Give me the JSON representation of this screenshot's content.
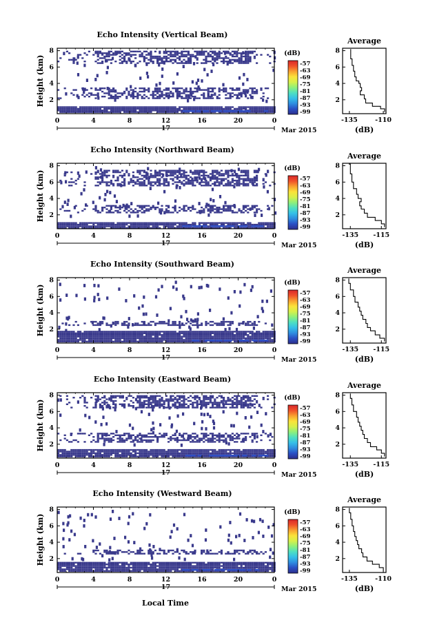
{
  "figure": {
    "xlabel": "Local Time",
    "date_label": "Mar 2015",
    "day_label": "17"
  },
  "chart_data": [
    {
      "type": "heatmap",
      "title": "Echo Intensity (Vertical Beam)",
      "ylabel": "Height (km)",
      "x_ticks": [
        "0",
        "4",
        "8",
        "12",
        "16",
        "20",
        "0"
      ],
      "y_ticks": [
        "2",
        "4",
        "6",
        "8"
      ],
      "xlim": [
        0,
        24
      ],
      "ylim": [
        0.3,
        8.3
      ],
      "colorbar": {
        "label": "(dB)",
        "ticks": [
          "-57",
          "-63",
          "-69",
          "-75",
          "-81",
          "-87",
          "-93",
          "-99"
        ]
      },
      "echo_layers_km": [
        [
          0.5,
          1.2
        ],
        [
          2.2,
          3.5
        ],
        [
          6.5,
          8.0
        ]
      ],
      "average": {
        "title": "Average",
        "xlabel": "(dB)",
        "x_ticks": [
          "-135",
          "-110"
        ],
        "y_ticks": [
          "2",
          "4",
          "6",
          "8"
        ],
        "xlim": [
          -140,
          -108
        ],
        "ylim": [
          0.3,
          8.3
        ],
        "profile": [
          [
            0.5,
            -109
          ],
          [
            0.9,
            -112
          ],
          [
            1.2,
            -118
          ],
          [
            1.6,
            -123
          ],
          [
            2.1,
            -124
          ],
          [
            2.6,
            -127
          ],
          [
            3.1,
            -126
          ],
          [
            3.5,
            -127
          ],
          [
            4.0,
            -128
          ],
          [
            4.3,
            -130
          ],
          [
            4.8,
            -131
          ],
          [
            5.5,
            -132
          ],
          [
            6.2,
            -133
          ],
          [
            7.0,
            -134
          ],
          [
            7.8,
            -134
          ],
          [
            8.2,
            -134
          ]
        ]
      }
    },
    {
      "type": "heatmap",
      "title": "Echo Intensity (Northward Beam)",
      "ylabel": "Height (km)",
      "x_ticks": [
        "0",
        "4",
        "8",
        "12",
        "16",
        "20",
        "0"
      ],
      "y_ticks": [
        "2",
        "4",
        "6",
        "8"
      ],
      "xlim": [
        0,
        24
      ],
      "ylim": [
        0.3,
        8.3
      ],
      "colorbar": {
        "label": "(dB)",
        "ticks": [
          "-57",
          "-63",
          "-69",
          "-75",
          "-81",
          "-87",
          "-93",
          "-99"
        ]
      },
      "echo_layers_km": [
        [
          0.4,
          1.1
        ],
        [
          2.2,
          3.2
        ],
        [
          5.5,
          7.5
        ]
      ],
      "average": {
        "title": "Average",
        "xlabel": "(dB)",
        "x_ticks": [
          "-135",
          "-115"
        ],
        "y_ticks": [
          "2",
          "4",
          "6",
          "8"
        ],
        "xlim": [
          -140,
          -112
        ],
        "ylim": [
          0.3,
          8.3
        ],
        "profile": [
          [
            0.5,
            -113
          ],
          [
            0.9,
            -115
          ],
          [
            1.3,
            -119
          ],
          [
            1.7,
            -124
          ],
          [
            2.2,
            -126
          ],
          [
            2.7,
            -128
          ],
          [
            3.1,
            -129
          ],
          [
            3.6,
            -128
          ],
          [
            4.0,
            -130
          ],
          [
            4.5,
            -131
          ],
          [
            5.2,
            -133
          ],
          [
            6.0,
            -134
          ],
          [
            7.0,
            -135
          ],
          [
            7.8,
            -135
          ],
          [
            8.2,
            -136
          ]
        ]
      }
    },
    {
      "type": "heatmap",
      "title": "Echo Intensity (Southward Beam)",
      "ylabel": "Height (km)",
      "x_ticks": [
        "0",
        "4",
        "8",
        "12",
        "16",
        "20",
        "0"
      ],
      "y_ticks": [
        "2",
        "4",
        "6",
        "8"
      ],
      "xlim": [
        0,
        24
      ],
      "ylim": [
        0.3,
        8.3
      ],
      "colorbar": {
        "label": "(dB)",
        "ticks": [
          "-57",
          "-63",
          "-69",
          "-75",
          "-81",
          "-87",
          "-93",
          "-99"
        ]
      },
      "echo_layers_km": [
        [
          0.4,
          1.8
        ],
        [
          2.5,
          3.0
        ]
      ],
      "average": {
        "title": "Average",
        "xlabel": "(dB)",
        "x_ticks": [
          "-135",
          "-115"
        ],
        "y_ticks": [
          "2",
          "4",
          "6",
          "8"
        ],
        "xlim": [
          -140,
          -112
        ],
        "ylim": [
          0.3,
          8.3
        ],
        "profile": [
          [
            0.5,
            -113
          ],
          [
            0.9,
            -116
          ],
          [
            1.3,
            -119
          ],
          [
            1.8,
            -122
          ],
          [
            2.2,
            -124
          ],
          [
            2.7,
            -125
          ],
          [
            3.2,
            -127
          ],
          [
            3.7,
            -128
          ],
          [
            4.2,
            -129
          ],
          [
            4.7,
            -130
          ],
          [
            5.3,
            -132
          ],
          [
            6.0,
            -133
          ],
          [
            6.8,
            -135
          ],
          [
            7.6,
            -136
          ],
          [
            8.2,
            -136
          ]
        ]
      }
    },
    {
      "type": "heatmap",
      "title": "Echo Intensity (Eastward Beam)",
      "ylabel": "Height (km)",
      "x_ticks": [
        "0",
        "4",
        "8",
        "12",
        "16",
        "20",
        "0"
      ],
      "y_ticks": [
        "2",
        "4",
        "6",
        "8"
      ],
      "xlim": [
        0,
        24
      ],
      "ylim": [
        0.3,
        8.3
      ],
      "colorbar": {
        "label": "(dB)",
        "ticks": [
          "-57",
          "-63",
          "-69",
          "-75",
          "-81",
          "-87",
          "-93",
          "-99"
        ]
      },
      "echo_layers_km": [
        [
          0.4,
          1.4
        ],
        [
          2.2,
          3.4
        ],
        [
          6.5,
          8.0
        ]
      ],
      "average": {
        "title": "Average",
        "xlabel": "(dB)",
        "x_ticks": [
          "-135",
          "-115"
        ],
        "y_ticks": [
          "2",
          "4",
          "6",
          "8"
        ],
        "xlim": [
          -140,
          -112
        ],
        "ylim": [
          0.3,
          8.3
        ],
        "profile": [
          [
            0.5,
            -113
          ],
          [
            0.9,
            -115
          ],
          [
            1.3,
            -118
          ],
          [
            1.7,
            -122
          ],
          [
            2.2,
            -124
          ],
          [
            2.7,
            -126
          ],
          [
            3.2,
            -127
          ],
          [
            3.7,
            -128
          ],
          [
            4.2,
            -129
          ],
          [
            4.7,
            -130
          ],
          [
            5.3,
            -131
          ],
          [
            6.0,
            -133
          ],
          [
            6.8,
            -134
          ],
          [
            7.6,
            -135
          ],
          [
            8.2,
            -135
          ]
        ]
      }
    },
    {
      "type": "heatmap",
      "title": "Echo Intensity (Westward Beam)",
      "ylabel": "Height (km)",
      "x_ticks": [
        "0",
        "4",
        "8",
        "12",
        "16",
        "20",
        "0"
      ],
      "y_ticks": [
        "2",
        "4",
        "6",
        "8"
      ],
      "xlim": [
        0,
        24
      ],
      "ylim": [
        0.3,
        8.3
      ],
      "colorbar": {
        "label": "(dB)",
        "ticks": [
          "-57",
          "-63",
          "-69",
          "-75",
          "-81",
          "-87",
          "-93",
          "-99"
        ]
      },
      "echo_layers_km": [
        [
          0.4,
          1.6
        ],
        [
          2.6,
          3.1
        ]
      ],
      "average": {
        "title": "Average",
        "xlabel": "(dB)",
        "x_ticks": [
          "-135",
          "-110"
        ],
        "y_ticks": [
          "2",
          "4",
          "6",
          "8"
        ],
        "xlim": [
          -140,
          -108
        ],
        "ylim": [
          0.3,
          8.3
        ],
        "profile": [
          [
            0.5,
            -110
          ],
          [
            0.9,
            -113
          ],
          [
            1.3,
            -118
          ],
          [
            1.7,
            -122
          ],
          [
            2.2,
            -125
          ],
          [
            2.7,
            -126
          ],
          [
            3.2,
            -128
          ],
          [
            3.7,
            -129
          ],
          [
            4.2,
            -130
          ],
          [
            4.7,
            -131
          ],
          [
            5.3,
            -132
          ],
          [
            6.0,
            -133
          ],
          [
            6.8,
            -134
          ],
          [
            7.6,
            -135
          ],
          [
            8.2,
            -135
          ]
        ]
      }
    }
  ],
  "colors": {
    "colorbar": [
      "#2d2f8c",
      "#2a4fc4",
      "#2f8ee0",
      "#35c0e8",
      "#4fe0c0",
      "#8ff07a",
      "#d8f04a",
      "#fbe23a",
      "#f9a030",
      "#f0502a",
      "#d8282a"
    ],
    "echo": "#3a3a8c"
  }
}
